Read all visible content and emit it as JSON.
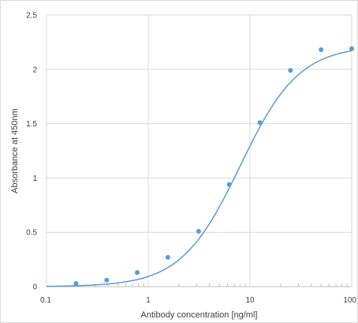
{
  "chart_data": {
    "type": "scatter",
    "title": "",
    "xlabel": "Antibody concentration [ng/ml]",
    "ylabel": "Absorbance at 450nm",
    "x_scale": "log",
    "xlim": [
      0.1,
      100
    ],
    "ylim": [
      0,
      2.5
    ],
    "x_ticks": [
      "0.1",
      "1",
      "10",
      "100"
    ],
    "y_ticks": [
      "0",
      "0.5",
      "1",
      "1.5",
      "2",
      "2.5"
    ],
    "grid": true,
    "legend": "none",
    "series": [
      {
        "color": "#5b9bd5",
        "style": "markers with smoothed fit line",
        "points": [
          {
            "x": 0.195,
            "y": 0.03
          },
          {
            "x": 0.39,
            "y": 0.06
          },
          {
            "x": 0.78,
            "y": 0.13
          },
          {
            "x": 1.56,
            "y": 0.27
          },
          {
            "x": 3.125,
            "y": 0.51
          },
          {
            "x": 6.25,
            "y": 0.94
          },
          {
            "x": 12.5,
            "y": 1.51
          },
          {
            "x": 25,
            "y": 1.99
          },
          {
            "x": 50,
            "y": 2.18
          },
          {
            "x": 100,
            "y": 2.19
          }
        ]
      }
    ],
    "fit_curve": {
      "model": "4PL",
      "bottom": 0.0,
      "top": 2.22,
      "ec50": 8.0,
      "hill": 1.5
    }
  }
}
